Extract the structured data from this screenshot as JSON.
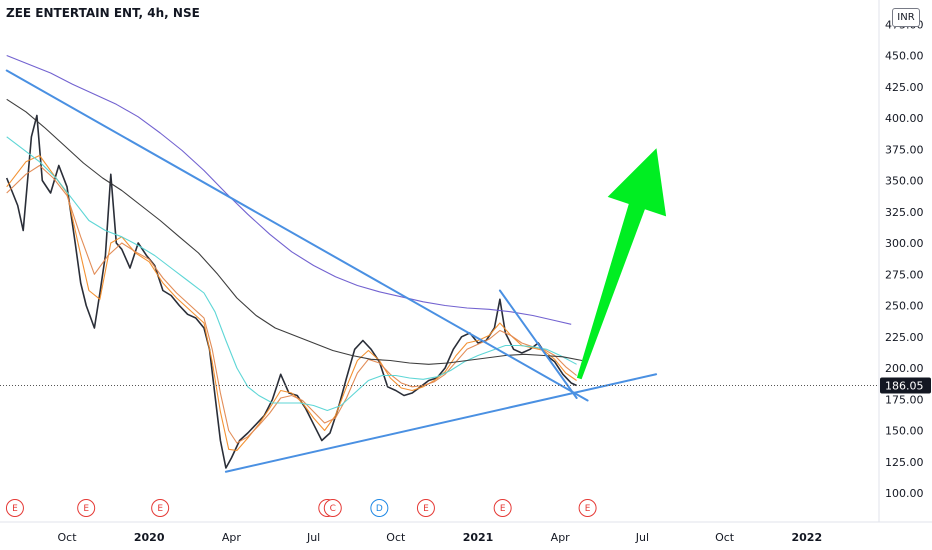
{
  "header": {
    "symbol_line": "ZEE ENTERTAIN ENT, 4h, NSE",
    "currency": "INR"
  },
  "chart_data": {
    "type": "line",
    "title": "ZEE ENTERTAIN ENT, 4h, NSE",
    "ylabel": "",
    "xlabel": "",
    "ylim": [
      78,
      480
    ],
    "y_ticks": [
      "475.00",
      "450.00",
      "425.00",
      "400.00",
      "375.00",
      "350.00",
      "325.00",
      "300.00",
      "275.00",
      "250.00",
      "225.00",
      "200.00",
      "175.00",
      "150.00",
      "125.00",
      "100.00"
    ],
    "x_ticks": [
      {
        "label": "Oct",
        "t": 0.0,
        "bold": false
      },
      {
        "label": "2020",
        "t": 3.0,
        "bold": true
      },
      {
        "label": "Apr",
        "t": 6.0,
        "bold": false
      },
      {
        "label": "Jul",
        "t": 9.0,
        "bold": false
      },
      {
        "label": "Oct",
        "t": 12.0,
        "bold": false
      },
      {
        "label": "2021",
        "t": 15.0,
        "bold": true
      },
      {
        "label": "Apr",
        "t": 18.0,
        "bold": false
      },
      {
        "label": "Jul",
        "t": 21.0,
        "bold": false
      },
      {
        "label": "Oct",
        "t": 24.0,
        "bold": false
      },
      {
        "label": "2022",
        "t": 27.0,
        "bold": true
      }
    ],
    "last_price": "186.05",
    "last_price_value": 186.05,
    "series": [
      {
        "role": "price",
        "color": "#131722",
        "points": [
          [
            -2.2,
            352
          ],
          [
            -1.8,
            330
          ],
          [
            -1.6,
            310
          ],
          [
            -1.3,
            385
          ],
          [
            -1.1,
            402
          ],
          [
            -0.9,
            350
          ],
          [
            -0.6,
            340
          ],
          [
            -0.3,
            362
          ],
          [
            0.0,
            345
          ],
          [
            0.3,
            300
          ],
          [
            0.5,
            268
          ],
          [
            0.7,
            250
          ],
          [
            1.0,
            232
          ],
          [
            1.2,
            260
          ],
          [
            1.4,
            290
          ],
          [
            1.6,
            355
          ],
          [
            1.8,
            300
          ],
          [
            2.0,
            295
          ],
          [
            2.3,
            280
          ],
          [
            2.6,
            300
          ],
          [
            2.9,
            290
          ],
          [
            3.2,
            282
          ],
          [
            3.5,
            262
          ],
          [
            3.8,
            258
          ],
          [
            4.1,
            250
          ],
          [
            4.4,
            243
          ],
          [
            4.7,
            240
          ],
          [
            5.0,
            232
          ],
          [
            5.2,
            215
          ],
          [
            5.4,
            178
          ],
          [
            5.6,
            142
          ],
          [
            5.8,
            120
          ],
          [
            6.0,
            128
          ],
          [
            6.3,
            142
          ],
          [
            6.6,
            148
          ],
          [
            6.9,
            155
          ],
          [
            7.2,
            162
          ],
          [
            7.5,
            175
          ],
          [
            7.8,
            195
          ],
          [
            8.1,
            180
          ],
          [
            8.4,
            178
          ],
          [
            8.7,
            168
          ],
          [
            9.0,
            155
          ],
          [
            9.3,
            142
          ],
          [
            9.6,
            148
          ],
          [
            9.9,
            168
          ],
          [
            10.2,
            192
          ],
          [
            10.5,
            215
          ],
          [
            10.8,
            222
          ],
          [
            11.1,
            215
          ],
          [
            11.4,
            205
          ],
          [
            11.7,
            185
          ],
          [
            12.0,
            182
          ],
          [
            12.3,
            178
          ],
          [
            12.6,
            180
          ],
          [
            12.9,
            185
          ],
          [
            13.2,
            190
          ],
          [
            13.5,
            192
          ],
          [
            13.8,
            200
          ],
          [
            14.1,
            215
          ],
          [
            14.4,
            225
          ],
          [
            14.7,
            228
          ],
          [
            15.0,
            220
          ],
          [
            15.3,
            222
          ],
          [
            15.6,
            232
          ],
          [
            15.8,
            255
          ],
          [
            16.0,
            228
          ],
          [
            16.3,
            215
          ],
          [
            16.6,
            212
          ],
          [
            16.9,
            215
          ],
          [
            17.2,
            220
          ],
          [
            17.5,
            210
          ],
          [
            17.8,
            205
          ],
          [
            18.1,
            195
          ],
          [
            18.4,
            188
          ],
          [
            18.6,
            186
          ]
        ]
      },
      {
        "role": "ma-orange-fast",
        "color": "#f28c28",
        "points": [
          [
            -2.2,
            345
          ],
          [
            -1.5,
            365
          ],
          [
            -1.0,
            370
          ],
          [
            -0.5,
            355
          ],
          [
            0.0,
            340
          ],
          [
            0.4,
            300
          ],
          [
            0.8,
            262
          ],
          [
            1.2,
            255
          ],
          [
            1.6,
            300
          ],
          [
            2.0,
            305
          ],
          [
            2.5,
            292
          ],
          [
            3.0,
            285
          ],
          [
            3.5,
            268
          ],
          [
            4.0,
            256
          ],
          [
            4.5,
            246
          ],
          [
            5.0,
            236
          ],
          [
            5.3,
            205
          ],
          [
            5.6,
            165
          ],
          [
            5.9,
            135
          ],
          [
            6.2,
            134
          ],
          [
            6.6,
            144
          ],
          [
            7.0,
            155
          ],
          [
            7.4,
            168
          ],
          [
            7.8,
            182
          ],
          [
            8.2,
            180
          ],
          [
            8.6,
            172
          ],
          [
            9.0,
            160
          ],
          [
            9.4,
            150
          ],
          [
            9.8,
            162
          ],
          [
            10.2,
            185
          ],
          [
            10.6,
            206
          ],
          [
            11.0,
            214
          ],
          [
            11.4,
            206
          ],
          [
            11.8,
            192
          ],
          [
            12.2,
            184
          ],
          [
            12.6,
            182
          ],
          [
            13.0,
            185
          ],
          [
            13.4,
            190
          ],
          [
            13.8,
            197
          ],
          [
            14.2,
            210
          ],
          [
            14.6,
            220
          ],
          [
            15.0,
            222
          ],
          [
            15.4,
            226
          ],
          [
            15.8,
            236
          ],
          [
            16.2,
            226
          ],
          [
            16.6,
            218
          ],
          [
            17.0,
            216
          ],
          [
            17.4,
            214
          ],
          [
            17.8,
            207
          ],
          [
            18.2,
            196
          ],
          [
            18.6,
            190
          ]
        ]
      },
      {
        "role": "ma-orange-slow",
        "color": "#e0874f",
        "points": [
          [
            -2.2,
            340
          ],
          [
            -1.5,
            355
          ],
          [
            -1.0,
            362
          ],
          [
            -0.5,
            352
          ],
          [
            0.0,
            338
          ],
          [
            0.5,
            305
          ],
          [
            1.0,
            275
          ],
          [
            1.5,
            290
          ],
          [
            2.0,
            300
          ],
          [
            2.5,
            293
          ],
          [
            3.0,
            287
          ],
          [
            3.5,
            272
          ],
          [
            4.0,
            260
          ],
          [
            4.5,
            250
          ],
          [
            5.0,
            240
          ],
          [
            5.3,
            215
          ],
          [
            5.6,
            180
          ],
          [
            5.9,
            150
          ],
          [
            6.2,
            140
          ],
          [
            6.6,
            145
          ],
          [
            7.0,
            154
          ],
          [
            7.4,
            164
          ],
          [
            7.8,
            176
          ],
          [
            8.2,
            178
          ],
          [
            8.6,
            174
          ],
          [
            9.0,
            165
          ],
          [
            9.4,
            156
          ],
          [
            9.8,
            160
          ],
          [
            10.2,
            176
          ],
          [
            10.6,
            196
          ],
          [
            11.0,
            207
          ],
          [
            11.4,
            204
          ],
          [
            11.8,
            195
          ],
          [
            12.2,
            188
          ],
          [
            12.6,
            185
          ],
          [
            13.0,
            186
          ],
          [
            13.4,
            189
          ],
          [
            13.8,
            195
          ],
          [
            14.2,
            205
          ],
          [
            14.6,
            215
          ],
          [
            15.0,
            219
          ],
          [
            15.4,
            223
          ],
          [
            15.8,
            230
          ],
          [
            16.2,
            226
          ],
          [
            16.6,
            220
          ],
          [
            17.0,
            217
          ],
          [
            17.4,
            215
          ],
          [
            17.8,
            210
          ],
          [
            18.2,
            201
          ],
          [
            18.6,
            194
          ]
        ]
      },
      {
        "role": "ma-cyan",
        "color": "#55d4d4",
        "points": [
          [
            -2.2,
            385
          ],
          [
            -1.6,
            375
          ],
          [
            -1.0,
            365
          ],
          [
            -0.4,
            352
          ],
          [
            0.2,
            335
          ],
          [
            0.8,
            318
          ],
          [
            1.4,
            310
          ],
          [
            2.0,
            305
          ],
          [
            2.6,
            298
          ],
          [
            3.2,
            290
          ],
          [
            3.8,
            280
          ],
          [
            4.4,
            270
          ],
          [
            5.0,
            260
          ],
          [
            5.4,
            245
          ],
          [
            5.8,
            222
          ],
          [
            6.2,
            200
          ],
          [
            6.6,
            185
          ],
          [
            7.0,
            178
          ],
          [
            7.5,
            172
          ],
          [
            8.0,
            172
          ],
          [
            8.5,
            172
          ],
          [
            9.0,
            170
          ],
          [
            9.5,
            166
          ],
          [
            10.0,
            170
          ],
          [
            10.5,
            180
          ],
          [
            11.0,
            190
          ],
          [
            11.5,
            194
          ],
          [
            12.0,
            194
          ],
          [
            12.5,
            192
          ],
          [
            13.0,
            191
          ],
          [
            13.5,
            193
          ],
          [
            14.0,
            198
          ],
          [
            14.5,
            205
          ],
          [
            15.0,
            210
          ],
          [
            15.5,
            214
          ],
          [
            16.0,
            218
          ],
          [
            16.5,
            218
          ],
          [
            17.0,
            217
          ],
          [
            17.5,
            215
          ],
          [
            18.0,
            210
          ],
          [
            18.6,
            203
          ]
        ]
      },
      {
        "role": "ma-dark",
        "color": "#333333",
        "points": [
          [
            -2.2,
            415
          ],
          [
            -1.5,
            405
          ],
          [
            -0.8,
            392
          ],
          [
            -0.1,
            378
          ],
          [
            0.6,
            364
          ],
          [
            1.3,
            352
          ],
          [
            2.0,
            342
          ],
          [
            2.7,
            330
          ],
          [
            3.4,
            318
          ],
          [
            4.1,
            305
          ],
          [
            4.8,
            292
          ],
          [
            5.5,
            275
          ],
          [
            6.2,
            256
          ],
          [
            6.9,
            242
          ],
          [
            7.6,
            232
          ],
          [
            8.3,
            226
          ],
          [
            9.0,
            220
          ],
          [
            9.7,
            214
          ],
          [
            10.4,
            210
          ],
          [
            11.1,
            207
          ],
          [
            11.8,
            206
          ],
          [
            12.5,
            204
          ],
          [
            13.2,
            203
          ],
          [
            13.9,
            204
          ],
          [
            14.6,
            206
          ],
          [
            15.3,
            208
          ],
          [
            16.0,
            210
          ],
          [
            16.7,
            211
          ],
          [
            17.4,
            210
          ],
          [
            18.1,
            209
          ],
          [
            18.8,
            206
          ]
        ]
      },
      {
        "role": "ma-purple",
        "color": "#6a5acd",
        "points": [
          [
            -2.2,
            450
          ],
          [
            -1.4,
            443
          ],
          [
            -0.6,
            436
          ],
          [
            0.2,
            427
          ],
          [
            1.0,
            419
          ],
          [
            1.8,
            411
          ],
          [
            2.6,
            401
          ],
          [
            3.4,
            388
          ],
          [
            4.2,
            374
          ],
          [
            5.0,
            358
          ],
          [
            5.8,
            340
          ],
          [
            6.6,
            323
          ],
          [
            7.4,
            307
          ],
          [
            8.2,
            293
          ],
          [
            9.0,
            282
          ],
          [
            9.8,
            273
          ],
          [
            10.6,
            266
          ],
          [
            11.4,
            261
          ],
          [
            12.2,
            257
          ],
          [
            13.0,
            253
          ],
          [
            13.8,
            250
          ],
          [
            14.6,
            248
          ],
          [
            15.4,
            247
          ],
          [
            16.2,
            245
          ],
          [
            17.0,
            242
          ],
          [
            17.8,
            238
          ],
          [
            18.4,
            235
          ]
        ]
      }
    ],
    "drawn_lines": [
      {
        "role": "upper-trendline",
        "color": "#4a90e2",
        "from": [
          -2.2,
          438
        ],
        "to": [
          19.0,
          174
        ]
      },
      {
        "role": "triangle-upper",
        "color": "#4a90e2",
        "from": [
          15.8,
          262
        ],
        "to": [
          18.6,
          176
        ]
      },
      {
        "role": "lower-trendline",
        "color": "#4a90e2",
        "from": [
          5.8,
          117
        ],
        "to": [
          21.5,
          195
        ]
      },
      {
        "role": "forecast-arrow",
        "color": "#00ee22",
        "from": [
          18.7,
          192
        ],
        "to": [
          21.5,
          375
        ]
      }
    ],
    "events": [
      {
        "label": "E",
        "t": -1.9,
        "color": "#e53935"
      },
      {
        "label": "E",
        "t": 0.7,
        "color": "#e53935"
      },
      {
        "label": "E",
        "t": 3.4,
        "color": "#e53935"
      },
      {
        "label": "E",
        "t": 9.5,
        "color": "#e53935"
      },
      {
        "label": "C",
        "t": 9.7,
        "color": "#e53935"
      },
      {
        "label": "D",
        "t": 11.4,
        "color": "#1e88e5"
      },
      {
        "label": "E",
        "t": 13.1,
        "color": "#e53935"
      },
      {
        "label": "E",
        "t": 15.9,
        "color": "#e53935"
      },
      {
        "label": "E",
        "t": 19.0,
        "color": "#e53935"
      }
    ],
    "legend": "none",
    "grid": false
  }
}
